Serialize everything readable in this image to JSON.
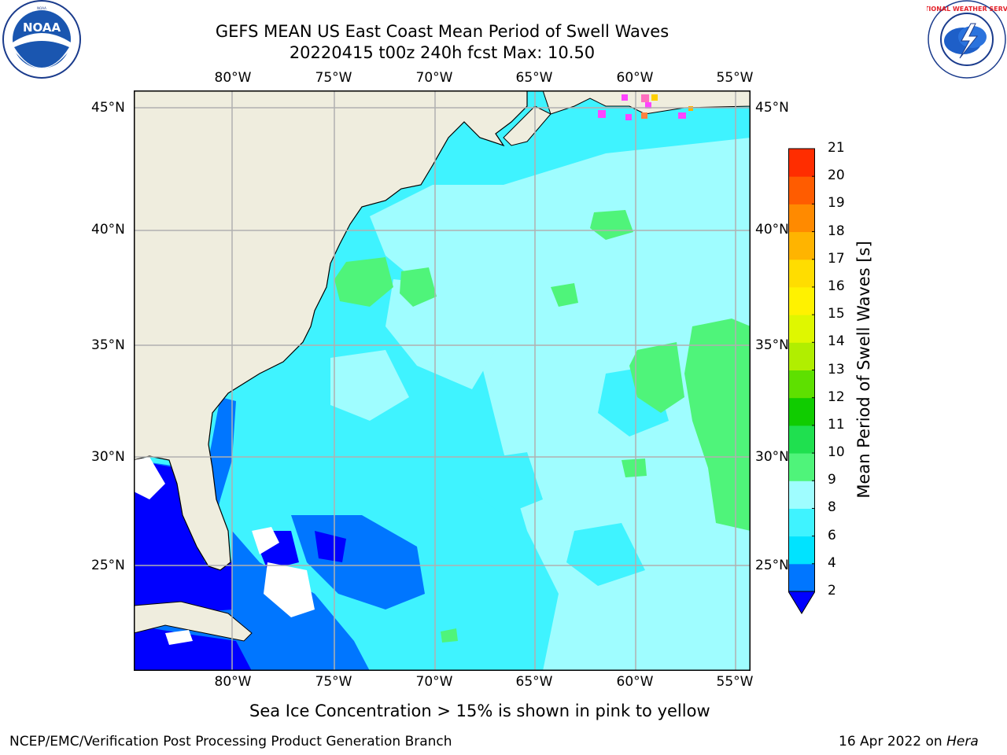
{
  "header": {
    "title_line1": "GEFS MEAN US East Coast Mean Period of Swell Waves",
    "title_line2": "20220415 t00z 240h fcst   Max: 10.50"
  },
  "logos": {
    "left": {
      "icon": "noaa-logo",
      "text": "NOAA",
      "ring_text": "NATIONAL OCEANIC AND ATMOSPHERIC ADMINISTRATION · U.S. DEPARTMENT OF COMMERCE"
    },
    "right": {
      "icon": "nws-logo",
      "ring_text": "NATIONAL WEATHER SERVICE"
    }
  },
  "map": {
    "lon_labels": [
      "80°W",
      "75°W",
      "70°W",
      "65°W",
      "60°W",
      "55°W"
    ],
    "lat_labels": [
      "45°N",
      "40°N",
      "35°N",
      "30°N",
      "25°N"
    ],
    "colors": {
      "land": "#efedde",
      "ocean_base": "#3ff3ff",
      "grid": "#b0b0b0"
    }
  },
  "colorbar": {
    "title": "Mean Period of Swell Waves [s]",
    "tick_labels": [
      "2",
      "4",
      "6",
      "8",
      "9",
      "10",
      "11",
      "12",
      "13",
      "14",
      "15",
      "16",
      "17",
      "18",
      "19",
      "20",
      "21"
    ],
    "bin_colors": [
      "#0076ff",
      "#00e3ff",
      "#3ff3ff",
      "#9ffdff",
      "#4ff47a",
      "#1fe04f",
      "#10cc00",
      "#5ee000",
      "#b1ee00",
      "#dff700",
      "#fff200",
      "#ffdd00",
      "#ffb400",
      "#ff8a00",
      "#ff5c00",
      "#ff2d00",
      "#ff0000"
    ],
    "underflow_color": "#0000ff"
  },
  "note": "Sea Ice Concentration > 15% is shown in pink to yellow",
  "footer": {
    "left": "NCEP/EMC/Verification Post Processing Product Generation Branch",
    "right_date": "16 Apr 2022 on ",
    "right_host": "Hera"
  }
}
